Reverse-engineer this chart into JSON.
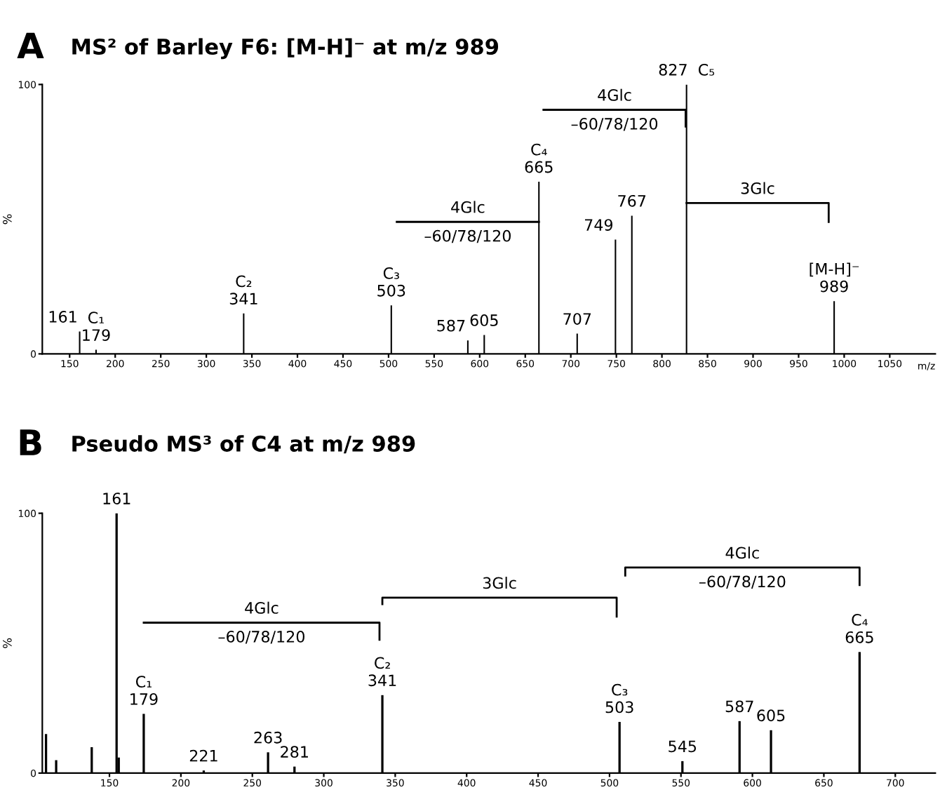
{
  "chart_data": [
    {
      "type": "bar",
      "title": "MS² of Barley F6: [M-H]⁻ at m/z 989",
      "xlabel": "m/z",
      "ylabel": "%",
      "xlim": [
        120,
        1100
      ],
      "ylim": [
        0,
        100
      ],
      "xticks": [
        150,
        200,
        250,
        300,
        350,
        400,
        450,
        500,
        550,
        600,
        650,
        700,
        750,
        800,
        850,
        900,
        950,
        1000,
        1050
      ],
      "yticks": [
        0,
        100
      ],
      "grid": false,
      "legend": false,
      "series": [
        {
          "color": "#000000",
          "x": [
            161,
            179,
            341,
            503,
            587,
            605,
            665,
            707,
            749,
            767,
            827,
            989
          ],
          "values": [
            8.3,
            1.5,
            15,
            18,
            5,
            7,
            63.9,
            7.5,
            42.4,
            51.3,
            100,
            19.6
          ]
        },
        {
          "type": "line",
          "name": "4Glc\n–60/78/120",
          "color": "#000000",
          "x": [
            509,
            665
          ],
          "values": [
            49,
            49
          ]
        },
        {
          "type": "line",
          "name": "4Glc\n–60/78/120",
          "color": "#000000",
          "x": [
            670,
            826,
            826
          ],
          "values": [
            90.6,
            90.6,
            84.4
          ]
        },
        {
          "type": "line",
          "name": "3Glc",
          "color": "#000000",
          "x": [
            827,
            983,
            983
          ],
          "values": [
            56,
            56,
            49
          ]
        }
      ],
      "annotations": [
        "A",
        {
          "text": "161",
          "x": 161,
          "y": 8.3
        },
        {
          "text": "C₁\n179",
          "x": 179,
          "y": 1.5
        },
        {
          "text": "C₂\n341",
          "x": 341,
          "y": 15
        },
        {
          "text": "C₃\n503",
          "x": 503,
          "y": 18
        },
        {
          "text": "587",
          "x": 587,
          "y": 5
        },
        {
          "text": "605",
          "x": 605,
          "y": 7
        },
        {
          "text": "C₄\n665",
          "x": 665,
          "y": 63.9
        },
        {
          "text": "707",
          "x": 707,
          "y": 7.5
        },
        {
          "text": "749",
          "x": 749,
          "y": 42.4
        },
        {
          "text": "767",
          "x": 767,
          "y": 51.3
        },
        {
          "text": "827  C₅",
          "x": 827,
          "y": 100
        },
        {
          "text": "[M-H]⁻\n989",
          "x": 989,
          "y": 19.6
        }
      ]
    },
    {
      "type": "bar",
      "title": "Pseudo MS³ of C4 at m/z 989",
      "ylabel": "%",
      "xlim": [
        103,
        728
      ],
      "ylim": [
        0,
        100
      ],
      "xticks": [
        150,
        200,
        250,
        300,
        350,
        400,
        450,
        500,
        550,
        600,
        650,
        700
      ],
      "yticks": [
        0,
        100
      ],
      "grid": false,
      "legend": false,
      "series": [
        {
          "color": "#000000",
          "x": [
            105.6,
            112.7,
            137.6,
            155,
            156.5,
            174,
            216,
            261,
            279.5,
            341,
            507,
            551,
            591,
            613,
            675
          ],
          "values": [
            15,
            5,
            10,
            100,
            6,
            22.8,
            1,
            8,
            2.5,
            30,
            19.7,
            4.6,
            20,
            16.5,
            46.6
          ]
        },
        {
          "type": "line",
          "name": "4Glc\n–60/78/120",
          "color": "#000000",
          "x": [
            174,
            339,
            339
          ],
          "values": [
            57.9,
            57.9,
            51.3
          ]
        },
        {
          "type": "line",
          "name": "3Glc",
          "color": "#000000",
          "x": [
            341,
            341,
            505,
            505
          ],
          "values": [
            65,
            67.5,
            67.5,
            60.2
          ]
        },
        {
          "type": "line",
          "name": "4Glc\n–60/78/120",
          "color": "#000000",
          "x": [
            511,
            511,
            675,
            675
          ],
          "values": [
            76,
            79.1,
            79.1,
            72.4
          ]
        }
      ],
      "annotations": [
        "B",
        {
          "text": "161",
          "x": 155,
          "y": 100
        },
        {
          "text": "C₁\n179",
          "x": 174,
          "y": 22.8
        },
        {
          "text": "221",
          "x": 216,
          "y": 1
        },
        {
          "text": "263",
          "x": 261,
          "y": 8
        },
        {
          "text": "281",
          "x": 279.5,
          "y": 2.5
        },
        {
          "text": "C₂\n341",
          "x": 341,
          "y": 30
        },
        {
          "text": "C₃\n503",
          "x": 507,
          "y": 19.7
        },
        {
          "text": "545",
          "x": 551,
          "y": 4.6
        },
        {
          "text": "587",
          "x": 591,
          "y": 20
        },
        {
          "text": "605",
          "x": 613,
          "y": 16.5
        },
        {
          "text": "C₄\n665",
          "x": 675,
          "y": 46.6
        }
      ]
    }
  ]
}
